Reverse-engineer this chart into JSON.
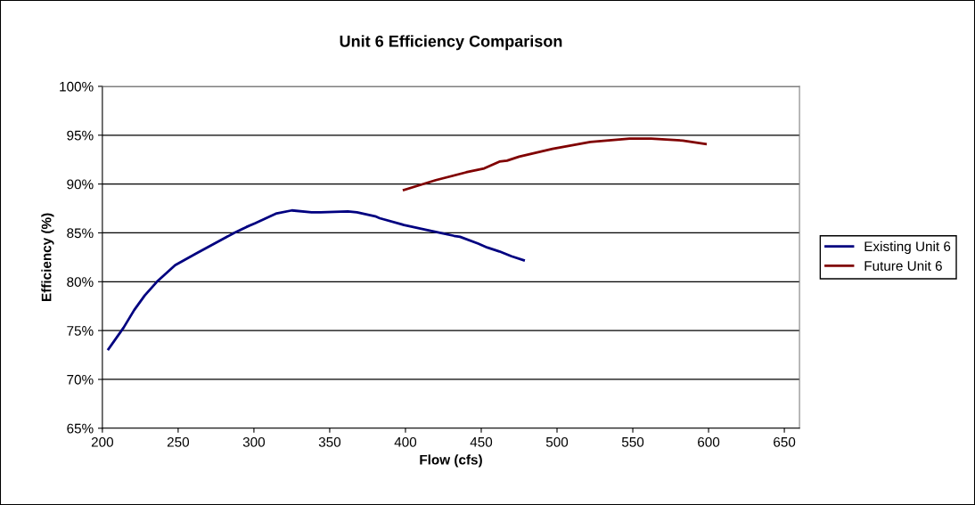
{
  "chart_data": {
    "type": "line",
    "title": "Unit 6 Efficiency Comparison",
    "xlabel": "Flow (cfs)",
    "ylabel": "Efficiency (%)",
    "xlim": [
      200,
      660
    ],
    "xticks": [
      200,
      250,
      300,
      350,
      400,
      450,
      500,
      550,
      600,
      650
    ],
    "ylim": [
      65,
      100
    ],
    "yticks": [
      {
        "value": 65,
        "label": "65%"
      },
      {
        "value": 70,
        "label": "70%"
      },
      {
        "value": 75,
        "label": "75%"
      },
      {
        "value": 80,
        "label": "80%"
      },
      {
        "value": 85,
        "label": "85%"
      },
      {
        "value": 90,
        "label": "90%"
      },
      {
        "value": 95,
        "label": "95%"
      },
      {
        "value": 100,
        "label": "100%"
      }
    ],
    "grid": "y",
    "legend": "right",
    "marker": "none",
    "line_style": "solid",
    "series": [
      {
        "name": "Existing Unit 6",
        "color": "#000080",
        "x": [
          204,
          214,
          221,
          228,
          236,
          248,
          262,
          275,
          287,
          295,
          301,
          315,
          325,
          338,
          344,
          362,
          368,
          380,
          383,
          397,
          399,
          420,
          432,
          436,
          448,
          454,
          462,
          470,
          478
        ],
        "values": [
          73.1,
          75.3,
          77.1,
          78.6,
          80.0,
          81.7,
          82.9,
          84.0,
          85.0,
          85.6,
          86.0,
          87.0,
          87.3,
          87.1,
          87.1,
          87.2,
          87.1,
          86.7,
          86.5,
          85.9,
          85.8,
          85.1,
          84.7,
          84.6,
          83.9,
          83.5,
          83.1,
          82.6,
          82.2
        ]
      },
      {
        "name": "Future Unit 6",
        "color": "#800000",
        "x": [
          399,
          420,
          440,
          452,
          462,
          467,
          475,
          497,
          522,
          548,
          562,
          583,
          598
        ],
        "values": [
          89.4,
          90.4,
          91.2,
          91.6,
          92.3,
          92.4,
          92.8,
          93.6,
          94.3,
          94.65,
          94.65,
          94.45,
          94.1
        ]
      }
    ]
  }
}
